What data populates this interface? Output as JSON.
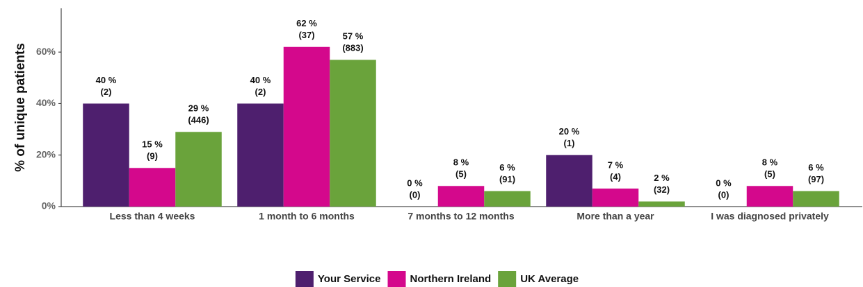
{
  "chart_data": {
    "type": "bar",
    "y_label": "% of unique patients",
    "categories": [
      "Less than 4 weeks",
      "1 month to 6 months",
      "7 months to 12 months",
      "More than a year",
      "I was diagnosed privately"
    ],
    "series": [
      {
        "name": "Your Service",
        "color": "#4e1f6e",
        "values": [
          40,
          40,
          0,
          20,
          0
        ],
        "value_labels": [
          "40 %",
          "40 %",
          "0 %",
          "20 %",
          "0 %"
        ],
        "count_labels": [
          "(2)",
          "(2)",
          "(0)",
          "(1)",
          "(0)"
        ]
      },
      {
        "name": "Northern Ireland",
        "color": "#d4088c",
        "values": [
          15,
          62,
          8,
          7,
          8
        ],
        "value_labels": [
          "15 %",
          "62 %",
          "8 %",
          "7 %",
          "8 %"
        ],
        "count_labels": [
          "(9)",
          "(37)",
          "(5)",
          "(4)",
          "(5)"
        ]
      },
      {
        "name": "UK Average",
        "color": "#6aa33b",
        "values": [
          29,
          57,
          6,
          2,
          6
        ],
        "value_labels": [
          "29 %",
          "57 %",
          "6 %",
          "2 %",
          "6 %"
        ],
        "count_labels": [
          "(446)",
          "(883)",
          "(91)",
          "(32)",
          "(97)"
        ]
      }
    ],
    "ylim": [
      0,
      77
    ],
    "yticks": [
      {
        "value": 0,
        "label": "0%"
      },
      {
        "value": 20,
        "label": "20%"
      },
      {
        "value": 40,
        "label": "40%"
      },
      {
        "value": 60,
        "label": "60%"
      }
    ],
    "legend": "bottom"
  }
}
